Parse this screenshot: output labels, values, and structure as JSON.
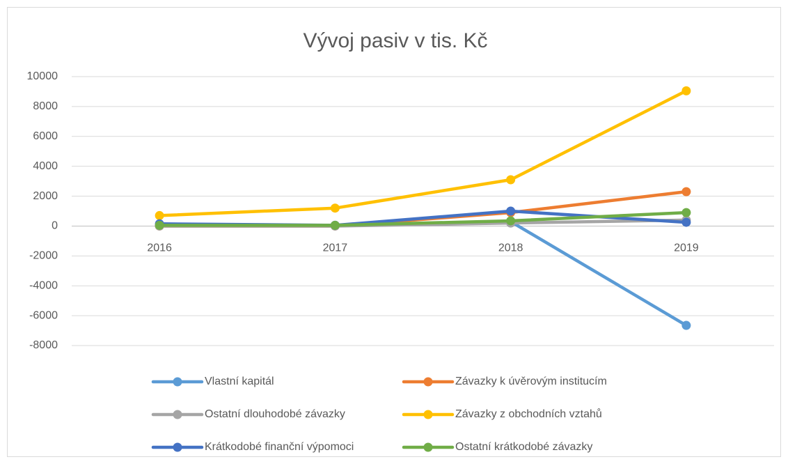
{
  "chart_data": {
    "type": "line",
    "title": "Vývoj pasiv v tis. Kč",
    "categories": [
      "2016",
      "2017",
      "2018",
      "2019"
    ],
    "series": [
      {
        "name": "Vlastní kapitál",
        "color": "#5b9bd5",
        "values": [
          50,
          50,
          300,
          -6650
        ]
      },
      {
        "name": "Závazky k úvěrovým institucím",
        "color": "#ed7d31",
        "values": [
          0,
          0,
          900,
          2300
        ]
      },
      {
        "name": "Ostatní dlouhodobé závazky",
        "color": "#a5a5a5",
        "values": [
          0,
          0,
          200,
          400
        ]
      },
      {
        "name": "Závazky z obchodních vztahů",
        "color": "#ffc000",
        "values": [
          700,
          1200,
          3100,
          9050
        ]
      },
      {
        "name": "Krátkodobé finanční výpomoci",
        "color": "#4472c4",
        "values": [
          150,
          50,
          1000,
          250
        ]
      },
      {
        "name": "Ostatní krátkodobé závazky",
        "color": "#70ad47",
        "values": [
          50,
          50,
          350,
          900
        ]
      }
    ],
    "ylim": [
      -8000,
      10000
    ],
    "yticks": [
      -8000,
      -6000,
      -4000,
      -2000,
      0,
      2000,
      4000,
      6000,
      8000,
      10000
    ],
    "grid": true,
    "legend": "bottom"
  }
}
